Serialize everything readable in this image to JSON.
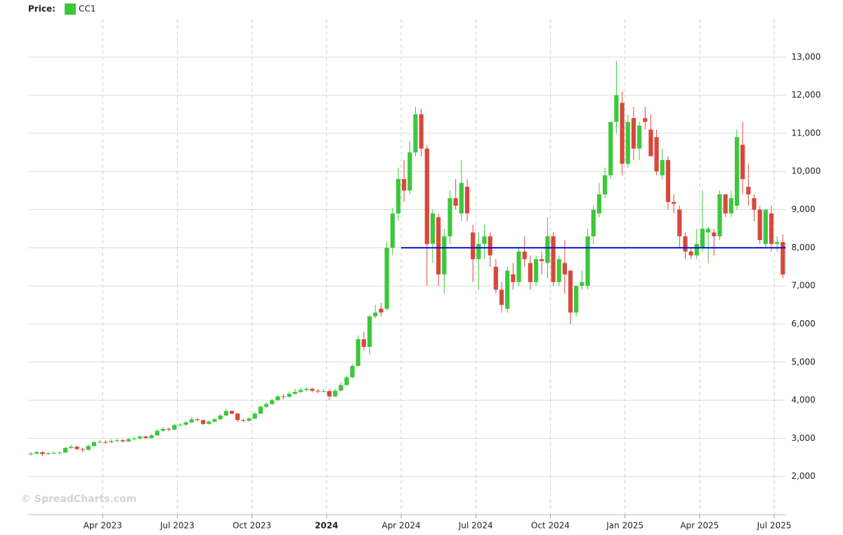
{
  "chart_data": {
    "type": "candlestick",
    "legend_title": "Price:",
    "watermark": "© SpreadCharts.com",
    "series": [
      {
        "name": "CC1",
        "color": "#3cc83c",
        "down_color": "#d8483b",
        "open": [
          2580,
          2600,
          2640,
          2590,
          2610,
          2620,
          2630,
          2750,
          2780,
          2720,
          2700,
          2800,
          2900,
          2910,
          2900,
          2930,
          2950,
          2920,
          2980,
          3000,
          3050,
          3010,
          3080,
          3200,
          3250,
          3230,
          3350,
          3360,
          3420,
          3500,
          3480,
          3380,
          3440,
          3500,
          3600,
          3720,
          3650,
          3480,
          3460,
          3520,
          3650,
          3830,
          3900,
          4000,
          4100,
          4090,
          4170,
          4220,
          4270,
          4300,
          4250,
          4230,
          4240,
          4100,
          4250,
          4400,
          4600,
          4900,
          5600,
          5400,
          6200,
          6400,
          6400,
          8000,
          8900,
          9800,
          9500,
          10500,
          11500,
          10600,
          8100,
          8800,
          7300,
          8300,
          9300,
          8900,
          9600,
          8400,
          7700,
          8100,
          8300,
          7500,
          6900,
          6400,
          7300,
          7100,
          7900,
          7600,
          7100,
          7700,
          7600,
          8300,
          7100,
          7600,
          7400,
          6300,
          7000,
          7000,
          8300,
          8900,
          9400,
          9900,
          11300,
          11800,
          10200,
          11400,
          10600,
          11400,
          11100,
          10900,
          9900,
          10300,
          9200,
          9000,
          8300,
          7900,
          7800,
          8000,
          8400,
          8400,
          8300,
          9400,
          8900,
          9100,
          10700,
          9600,
          9300,
          9000,
          8100,
          8900,
          8100,
          8150
        ],
        "high": [
          2640,
          2670,
          2660,
          2640,
          2650,
          2660,
          2780,
          2830,
          2810,
          2750,
          2840,
          2940,
          2960,
          2950,
          2970,
          2990,
          2980,
          3010,
          3040,
          3080,
          3070,
          3110,
          3240,
          3290,
          3280,
          3380,
          3400,
          3450,
          3560,
          3540,
          3500,
          3470,
          3540,
          3640,
          3770,
          3740,
          3680,
          3510,
          3560,
          3690,
          3870,
          3950,
          4040,
          4140,
          4160,
          4230,
          4300,
          4330,
          4350,
          4330,
          4290,
          4300,
          4290,
          4300,
          4470,
          4650,
          4950,
          5700,
          5800,
          6250,
          6500,
          6550,
          8150,
          9050,
          10100,
          10300,
          10800,
          11700,
          11650,
          10700,
          9000,
          8900,
          8500,
          9500,
          9800,
          10300,
          9800,
          8600,
          8400,
          8600,
          8400,
          7700,
          7100,
          7500,
          7600,
          8000,
          8300,
          7800,
          7800,
          7900,
          8800,
          8400,
          7800,
          8200,
          7400,
          7000,
          7400,
          8500,
          9100,
          9700,
          10100,
          11300,
          12900,
          12100,
          11500,
          11700,
          11300,
          11700,
          11500,
          11100,
          10600,
          10400,
          9400,
          9100,
          8400,
          8000,
          8500,
          9500,
          8550,
          8500,
          9500,
          9400,
          9500,
          11100,
          11300,
          10200,
          9400,
          9100,
          9000,
          9100,
          8300,
          8350
        ],
        "low": [
          2550,
          2580,
          2540,
          2560,
          2580,
          2590,
          2610,
          2720,
          2690,
          2640,
          2680,
          2780,
          2870,
          2860,
          2880,
          2900,
          2890,
          2900,
          2950,
          2970,
          2980,
          2990,
          3060,
          3170,
          3190,
          3210,
          3310,
          3330,
          3400,
          3440,
          3340,
          3360,
          3420,
          3480,
          3580,
          3620,
          3430,
          3420,
          3440,
          3500,
          3630,
          3800,
          3880,
          3980,
          4030,
          4070,
          4150,
          4190,
          4230,
          4200,
          4180,
          4200,
          4010,
          4080,
          4230,
          4380,
          4580,
          4880,
          5300,
          5200,
          6150,
          6200,
          6350,
          7800,
          8700,
          9200,
          9400,
          10400,
          10400,
          7000,
          7600,
          7000,
          6800,
          8100,
          9000,
          8700,
          8700,
          7100,
          6900,
          7700,
          7500,
          6800,
          6300,
          6300,
          6900,
          7000,
          7500,
          6900,
          7000,
          7300,
          7200,
          7000,
          7000,
          6800,
          6000,
          6200,
          6900,
          6900,
          8100,
          8800,
          9300,
          9800,
          11000,
          9900,
          10100,
          10300,
          10300,
          11100,
          10400,
          9900,
          9800,
          9000,
          8900,
          8000,
          7700,
          7700,
          7700,
          7900,
          7600,
          7800,
          8200,
          8800,
          8800,
          9000,
          9400,
          9100,
          8700,
          8100,
          8000,
          7900,
          7900,
          7200
        ],
        "close": [
          2600,
          2640,
          2590,
          2610,
          2620,
          2630,
          2750,
          2780,
          2720,
          2700,
          2800,
          2900,
          2910,
          2900,
          2930,
          2950,
          2920,
          2980,
          3000,
          3050,
          3010,
          3080,
          3200,
          3250,
          3230,
          3350,
          3360,
          3420,
          3500,
          3480,
          3380,
          3440,
          3500,
          3600,
          3720,
          3650,
          3480,
          3460,
          3520,
          3650,
          3830,
          3900,
          4000,
          4100,
          4090,
          4170,
          4220,
          4270,
          4300,
          4250,
          4230,
          4240,
          4100,
          4250,
          4400,
          4600,
          4900,
          5600,
          5400,
          6200,
          6300,
          6300,
          8000,
          8900,
          9800,
          9500,
          10500,
          11500,
          10600,
          8100,
          8900,
          7300,
          8300,
          9300,
          9100,
          9700,
          8900,
          7700,
          8100,
          8300,
          7800,
          6900,
          6500,
          7400,
          7100,
          7900,
          7700,
          7100,
          7700,
          7650,
          8300,
          7100,
          7700,
          7300,
          6300,
          7000,
          7100,
          8300,
          9000,
          9400,
          9900,
          11300,
          12000,
          10200,
          11300,
          10600,
          11200,
          11300,
          10400,
          10000,
          10300,
          9200,
          9150,
          8300,
          7900,
          7800,
          8100,
          8500,
          8500,
          8300,
          9400,
          8900,
          9300,
          10900,
          9800,
          9400,
          9000,
          8200,
          9000,
          8100,
          8150,
          7300
        ]
      }
    ],
    "categories": [
      null,
      null,
      null,
      null,
      null,
      null,
      null,
      null,
      null,
      null,
      null,
      null,
      null,
      "Apr 2023",
      null,
      null,
      null,
      null,
      null,
      null,
      null,
      null,
      null,
      null,
      null,
      null,
      "Jul 2023",
      null,
      null,
      null,
      null,
      null,
      null,
      null,
      null,
      null,
      null,
      null,
      null,
      "Oct 2023",
      null,
      null,
      null,
      null,
      null,
      null,
      null,
      null,
      null,
      null,
      null,
      null,
      "2024",
      null,
      null,
      null,
      null,
      null,
      null,
      null,
      null,
      null,
      null,
      null,
      null,
      "Apr 2024",
      null,
      null,
      null,
      null,
      null,
      null,
      null,
      null,
      null,
      null,
      null,
      null,
      "Jul 2024",
      null,
      null,
      null,
      null,
      null,
      null,
      null,
      null,
      null,
      null,
      null,
      null,
      "Oct 2024",
      null,
      null,
      null,
      null,
      null,
      null,
      null,
      null,
      null,
      null,
      null,
      null,
      "Jan 2025",
      null,
      null,
      null,
      null,
      null,
      null,
      null,
      null,
      null,
      null,
      null,
      null,
      "Apr 2025",
      null,
      null,
      null,
      null,
      null,
      null,
      null,
      null,
      null,
      null,
      null,
      null,
      "Jul 2025",
      null
    ],
    "ylim": [
      1000,
      14000
    ],
    "yticks": [
      {
        "value": 2000,
        "label": "2,000"
      },
      {
        "value": 3000,
        "label": "3,000"
      },
      {
        "value": 4000,
        "label": "4,000"
      },
      {
        "value": 5000,
        "label": "5,000"
      },
      {
        "value": 6000,
        "label": "6,000"
      },
      {
        "value": 7000,
        "label": "7,000"
      },
      {
        "value": 8000,
        "label": "8,000"
      },
      {
        "value": 9000,
        "label": "9,000"
      },
      {
        "value": 10000,
        "label": "10,000"
      },
      {
        "value": 11000,
        "label": "11,000"
      },
      {
        "value": 12000,
        "label": "12,000"
      },
      {
        "value": 13000,
        "label": "13,000"
      }
    ],
    "grid": true,
    "hline": {
      "value": 8000,
      "start": 65,
      "color": "#1010d0"
    }
  }
}
